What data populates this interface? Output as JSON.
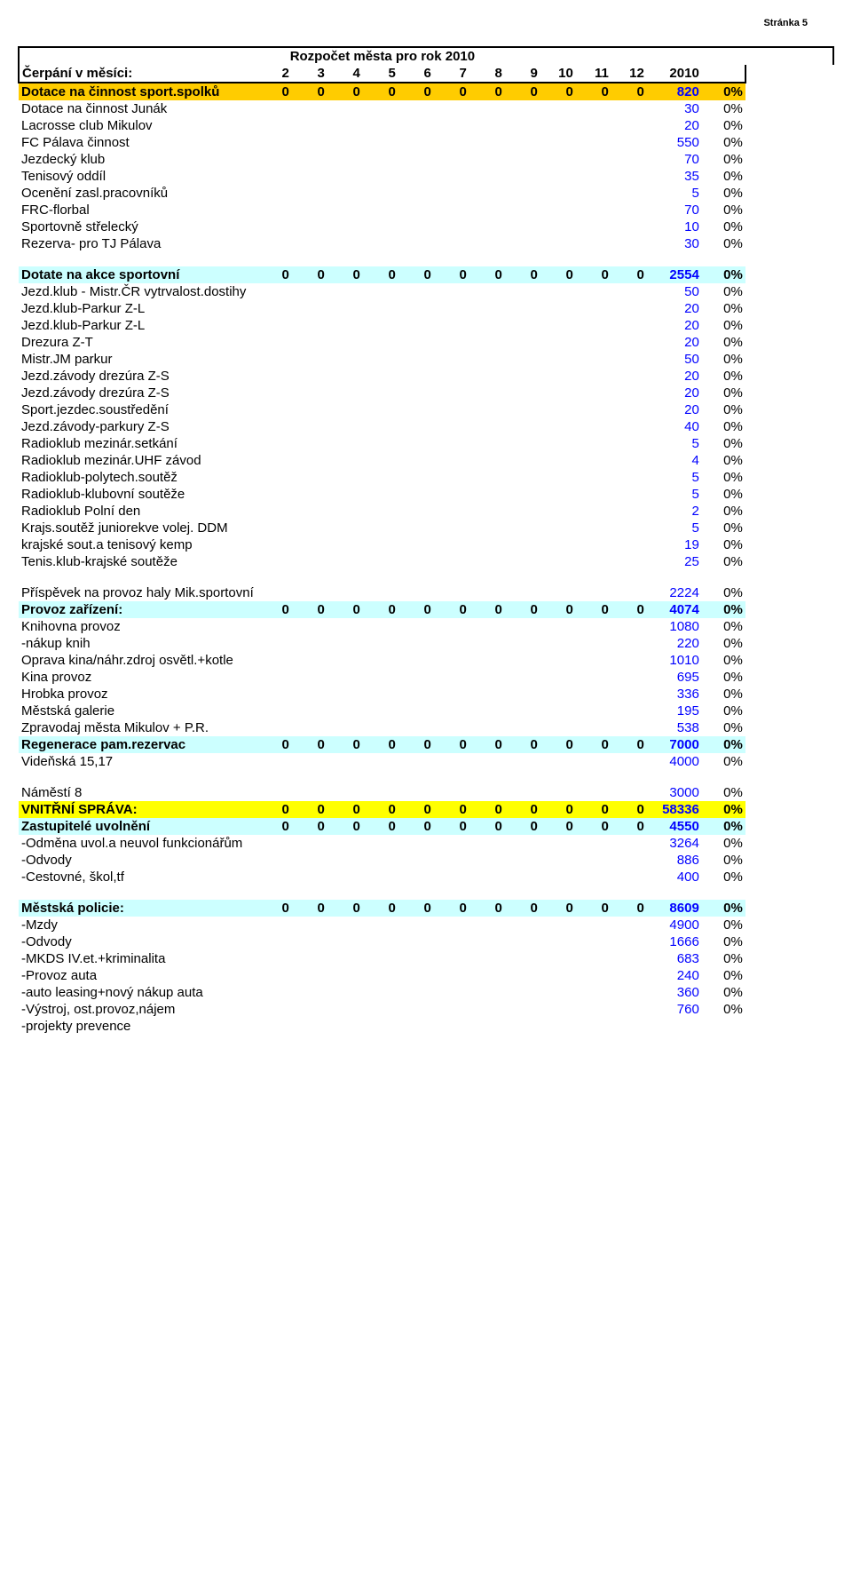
{
  "page_number": "Stránka 5",
  "title": "Rozpočet města pro rok 2010",
  "header": {
    "label": "Čerpání v měsíci:",
    "cols": [
      "2",
      "3",
      "4",
      "5",
      "6",
      "7",
      "8",
      "9",
      "10",
      "11",
      "12",
      "2010",
      ""
    ]
  },
  "rows": [
    {
      "style": "orange",
      "bold": true,
      "label": "Dotace na činnost sport.spolků",
      "vals": [
        "0",
        "0",
        "0",
        "0",
        "0",
        "0",
        "0",
        "0",
        "0",
        "0",
        "0"
      ],
      "total": "820",
      "pct": "0%"
    },
    {
      "label": "Dotace na činnost Junák",
      "total": "30",
      "pct": "0%"
    },
    {
      "label": "Lacrosse club Mikulov",
      "total": "20",
      "pct": "0%"
    },
    {
      "label": "FC Pálava činnost",
      "total": "550",
      "pct": "0%"
    },
    {
      "label": "Jezdecký klub",
      "total": "70",
      "pct": "0%"
    },
    {
      "label": "Tenisový oddíl",
      "total": "35",
      "pct": "0%"
    },
    {
      "label": "Ocenění zasl.pracovníků",
      "total": "5",
      "pct": "0%"
    },
    {
      "label": "FRC-florbal",
      "total": "70",
      "pct": "0%"
    },
    {
      "label": "Sportovně střelecký",
      "total": "10",
      "pct": "0%"
    },
    {
      "label": "Rezerva- pro TJ Pálava",
      "total": "30",
      "pct": "0%"
    },
    {
      "blank": true
    },
    {
      "style": "cyan",
      "bold": true,
      "label": "Dotate na akce sportovní",
      "vals": [
        "0",
        "0",
        "0",
        "0",
        "0",
        "0",
        "0",
        "0",
        "0",
        "0",
        "0"
      ],
      "total": "2554",
      "pct": "0%"
    },
    {
      "label": "Jezd.klub - Mistr.ČR vytrvalost.dostihy",
      "total": "50",
      "pct": "0%"
    },
    {
      "label": "Jezd.klub-Parkur Z-L",
      "total": "20",
      "pct": "0%"
    },
    {
      "label": "Jezd.klub-Parkur Z-L",
      "total": "20",
      "pct": "0%"
    },
    {
      "label": "Drezura Z-T",
      "total": "20",
      "pct": "0%"
    },
    {
      "label": "Mistr.JM parkur",
      "total": "50",
      "pct": "0%"
    },
    {
      "label": "Jezd.závody drezúra Z-S",
      "total": "20",
      "pct": "0%"
    },
    {
      "label": "Jezd.závody drezúra Z-S",
      "total": "20",
      "pct": "0%"
    },
    {
      "label": "Sport.jezdec.soustředění",
      "total": "20",
      "pct": "0%"
    },
    {
      "label": "Jezd.závody-parkury Z-S",
      "total": "40",
      "pct": "0%"
    },
    {
      "label": "Radioklub mezinár.setkání",
      "total": "5",
      "pct": "0%"
    },
    {
      "label": "Radioklub mezinár.UHF závod",
      "total": "4",
      "pct": "0%"
    },
    {
      "label": "Radioklub-polytech.soutěž",
      "total": "5",
      "pct": "0%"
    },
    {
      "label": "Radioklub-klubovní soutěže",
      "total": "5",
      "pct": "0%"
    },
    {
      "label": "Radioklub Polní den",
      "total": "2",
      "pct": "0%"
    },
    {
      "label": "Krajs.soutěž juniorekve volej. DDM",
      "total": "5",
      "pct": "0%"
    },
    {
      "label": "krajské sout.a tenisový kemp",
      "total": "19",
      "pct": "0%"
    },
    {
      "label": "Tenis.klub-krajské soutěže",
      "total": "25",
      "pct": "0%"
    },
    {
      "blank": true
    },
    {
      "label": "Příspěvek na provoz haly Mik.sportovní",
      "total": "2224",
      "pct": "0%"
    },
    {
      "style": "cyan",
      "bold": true,
      "label": "Provoz zařízení:",
      "vals": [
        "0",
        "0",
        "0",
        "0",
        "0",
        "0",
        "0",
        "0",
        "0",
        "0",
        "0"
      ],
      "total": "4074",
      "pct": "0%"
    },
    {
      "label": "Knihovna provoz",
      "total": "1080",
      "pct": "0%"
    },
    {
      "label": " -nákup knih",
      "total": "220",
      "pct": "0%"
    },
    {
      "label": "Oprava kina/náhr.zdroj osvětl.+kotle",
      "total": "1010",
      "pct": "0%"
    },
    {
      "label": "Kina provoz",
      "total": "695",
      "pct": "0%"
    },
    {
      "label": "Hrobka provoz",
      "total": "336",
      "pct": "0%"
    },
    {
      "label": "Městská galerie",
      "total": "195",
      "pct": "0%"
    },
    {
      "label": "Zpravodaj města Mikulov  + P.R.",
      "total": "538",
      "pct": "0%"
    },
    {
      "style": "cyan",
      "bold": true,
      "label": "Regenerace pam.rezervac",
      "vals": [
        "0",
        "0",
        "0",
        "0",
        "0",
        "0",
        "0",
        "0",
        "0",
        "0",
        "0"
      ],
      "total": "7000",
      "pct": "0%"
    },
    {
      "label": "Videňská 15,17",
      "total": "4000",
      "pct": "0%"
    },
    {
      "blank": true
    },
    {
      "label": "Náměstí 8",
      "total": "3000",
      "pct": "0%"
    },
    {
      "style": "yellow",
      "bold": true,
      "label": "VNITŘNÍ SPRÁVA:",
      "vals": [
        "0",
        "0",
        "0",
        "0",
        "0",
        "0",
        "0",
        "0",
        "0",
        "0",
        "0"
      ],
      "total": "58336",
      "pct": "0%"
    },
    {
      "style": "cyan",
      "bold": true,
      "label": "Zastupitelé uvolnění",
      "vals": [
        "0",
        "0",
        "0",
        "0",
        "0",
        "0",
        "0",
        "0",
        "0",
        "0",
        "0"
      ],
      "total": "4550",
      "pct": "0%"
    },
    {
      "label": " -Odměna  uvol.a neuvol funkcionářům",
      "total": "3264",
      "pct": "0%"
    },
    {
      "label": " -Odvody",
      "total": "886",
      "pct": "0%"
    },
    {
      "label": " -Cestovné, škol,tf",
      "total": "400",
      "pct": "0%"
    },
    {
      "blank": true
    },
    {
      "style": "cyan",
      "bold": true,
      "label": "Městská policie:",
      "vals": [
        "0",
        "0",
        "0",
        "0",
        "0",
        "0",
        "0",
        "0",
        "0",
        "0",
        "0"
      ],
      "total": "8609",
      "pct": "0%"
    },
    {
      "label": " -Mzdy",
      "total": "4900",
      "pct": "0%"
    },
    {
      "label": " -Odvody",
      "total": "1666",
      "pct": "0%"
    },
    {
      "label": " -MKDS IV.et.+kriminalita",
      "total": "683",
      "pct": "0%"
    },
    {
      "label": " -Provoz auta",
      "total": "240",
      "pct": "0%"
    },
    {
      "label": " -auto leasing+nový nákup auta",
      "total": "360",
      "pct": "0%"
    },
    {
      "label": " -Výstroj, ost.provoz,nájem",
      "total": "760",
      "pct": "0%"
    },
    {
      "label": " -projekty prevence",
      "total": "",
      "pct": ""
    }
  ]
}
